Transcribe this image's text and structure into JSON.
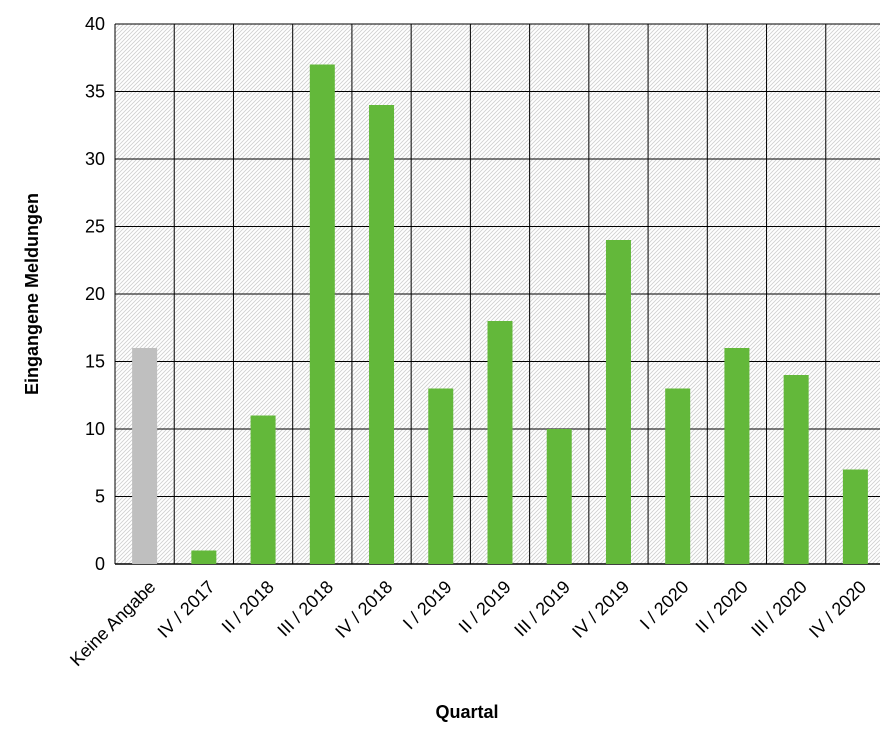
{
  "chart_data": {
    "type": "bar",
    "title": "",
    "xlabel": "Quartal",
    "ylabel": "Eingangene Meldungen",
    "categories": [
      "Keine Angabe",
      "IV / 2017",
      "II / 2018",
      "III / 2018",
      "IV / 2018",
      "I / 2019",
      "II / 2019",
      "III / 2019",
      "IV / 2019",
      "I / 2020",
      "II / 2020",
      "III / 2020",
      "IV / 2020"
    ],
    "values": [
      16,
      1,
      11,
      37,
      34,
      13,
      18,
      10,
      24,
      13,
      16,
      14,
      7
    ],
    "bar_colors": [
      "#bfbfbf",
      "#63b83a",
      "#63b83a",
      "#63b83a",
      "#63b83a",
      "#63b83a",
      "#63b83a",
      "#63b83a",
      "#63b83a",
      "#63b83a",
      "#63b83a",
      "#63b83a",
      "#63b83a"
    ],
    "ylim": [
      0,
      40
    ],
    "yticks": [
      0,
      5,
      10,
      15,
      20,
      25,
      30,
      35,
      40
    ],
    "grid": true,
    "legend": false,
    "plot_background": "diagonal-hatch",
    "colors": {
      "bar_default": "#63b83a",
      "bar_missing": "#bfbfbf",
      "gridline": "#000000",
      "hatch": "#cfcfcf"
    }
  }
}
